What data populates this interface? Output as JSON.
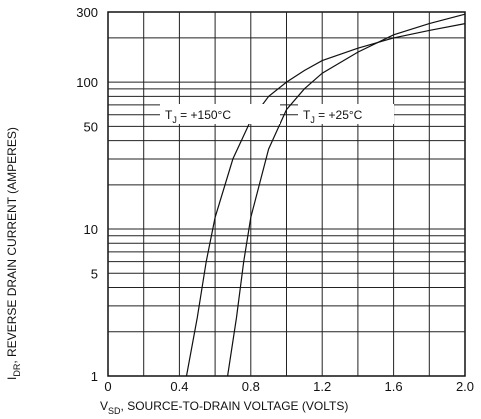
{
  "chart_data": {
    "type": "line",
    "y_scale": "log",
    "xlim": [
      0,
      2.0
    ],
    "ylim": [
      1,
      300
    ],
    "x_ticks": [
      0,
      0.4,
      0.8,
      1.2,
      1.6,
      2.0
    ],
    "x_tick_labels": [
      "0",
      "0.4",
      "0.8",
      "1.2",
      "1.6",
      "2.0"
    ],
    "y_ticks": [
      1,
      5,
      10,
      50,
      100,
      300
    ],
    "y_tick_labels": [
      "1",
      "5",
      "10",
      "50",
      "100",
      "300"
    ],
    "grid": true,
    "xlabel_main": "V",
    "xlabel_sub": "SD",
    "xlabel_rest": ", SOURCE-TO-DRAIN VOLTAGE (VOLTS)",
    "ylabel_main": "I",
    "ylabel_sub": "DR",
    "ylabel_rest": ", REVERSE DRAIN CURRENT (AMPERES)",
    "series": [
      {
        "label_main": "T",
        "label_sub": "J",
        "label_rest": " = +150°C",
        "x": [
          0.44,
          0.5,
          0.55,
          0.6,
          0.7,
          0.8,
          0.9,
          1.0,
          1.1,
          1.2,
          1.4,
          1.6,
          1.8,
          2.0
        ],
        "y": [
          1,
          2.5,
          6,
          12,
          30,
          55,
          80,
          100,
          120,
          140,
          170,
          200,
          225,
          250
        ]
      },
      {
        "label_main": "T",
        "label_sub": "J",
        "label_rest": " = +25°C",
        "x": [
          0.67,
          0.72,
          0.76,
          0.8,
          0.9,
          1.0,
          1.1,
          1.2,
          1.4,
          1.6,
          1.8,
          2.0
        ],
        "y": [
          1,
          2.5,
          6,
          12,
          35,
          65,
          90,
          115,
          160,
          210,
          250,
          290
        ]
      }
    ]
  }
}
